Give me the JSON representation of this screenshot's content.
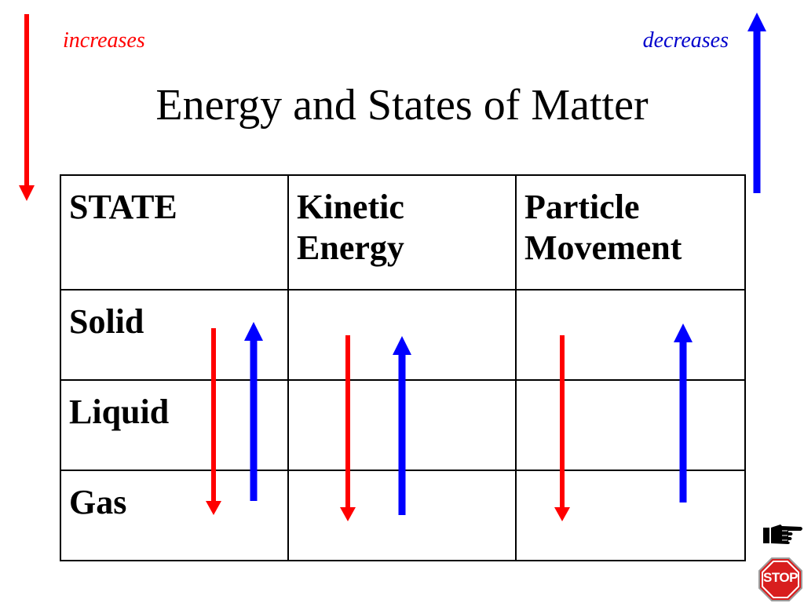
{
  "legend": {
    "increases_label": "increases",
    "decreases_label": "decreases",
    "increases_color": "#ff0000",
    "decreases_color": "#0000cc"
  },
  "title": "Energy and States of Matter",
  "table": {
    "headers": [
      "STATE",
      "Kinetic\nEnergy",
      "Particle\nMovement"
    ],
    "rows": [
      {
        "state": "Solid",
        "kinetic": "",
        "movement": ""
      },
      {
        "state": "Liquid",
        "kinetic": "",
        "movement": ""
      },
      {
        "state": "Gas",
        "kinetic": "",
        "movement": ""
      }
    ]
  },
  "icons": {
    "increase_arrow": "arrow-down-icon",
    "decrease_arrow": "arrow-up-icon",
    "next_slide": "pointing-hand-icon",
    "stop": "stop-sign-icon"
  },
  "stop_label": "STOP"
}
